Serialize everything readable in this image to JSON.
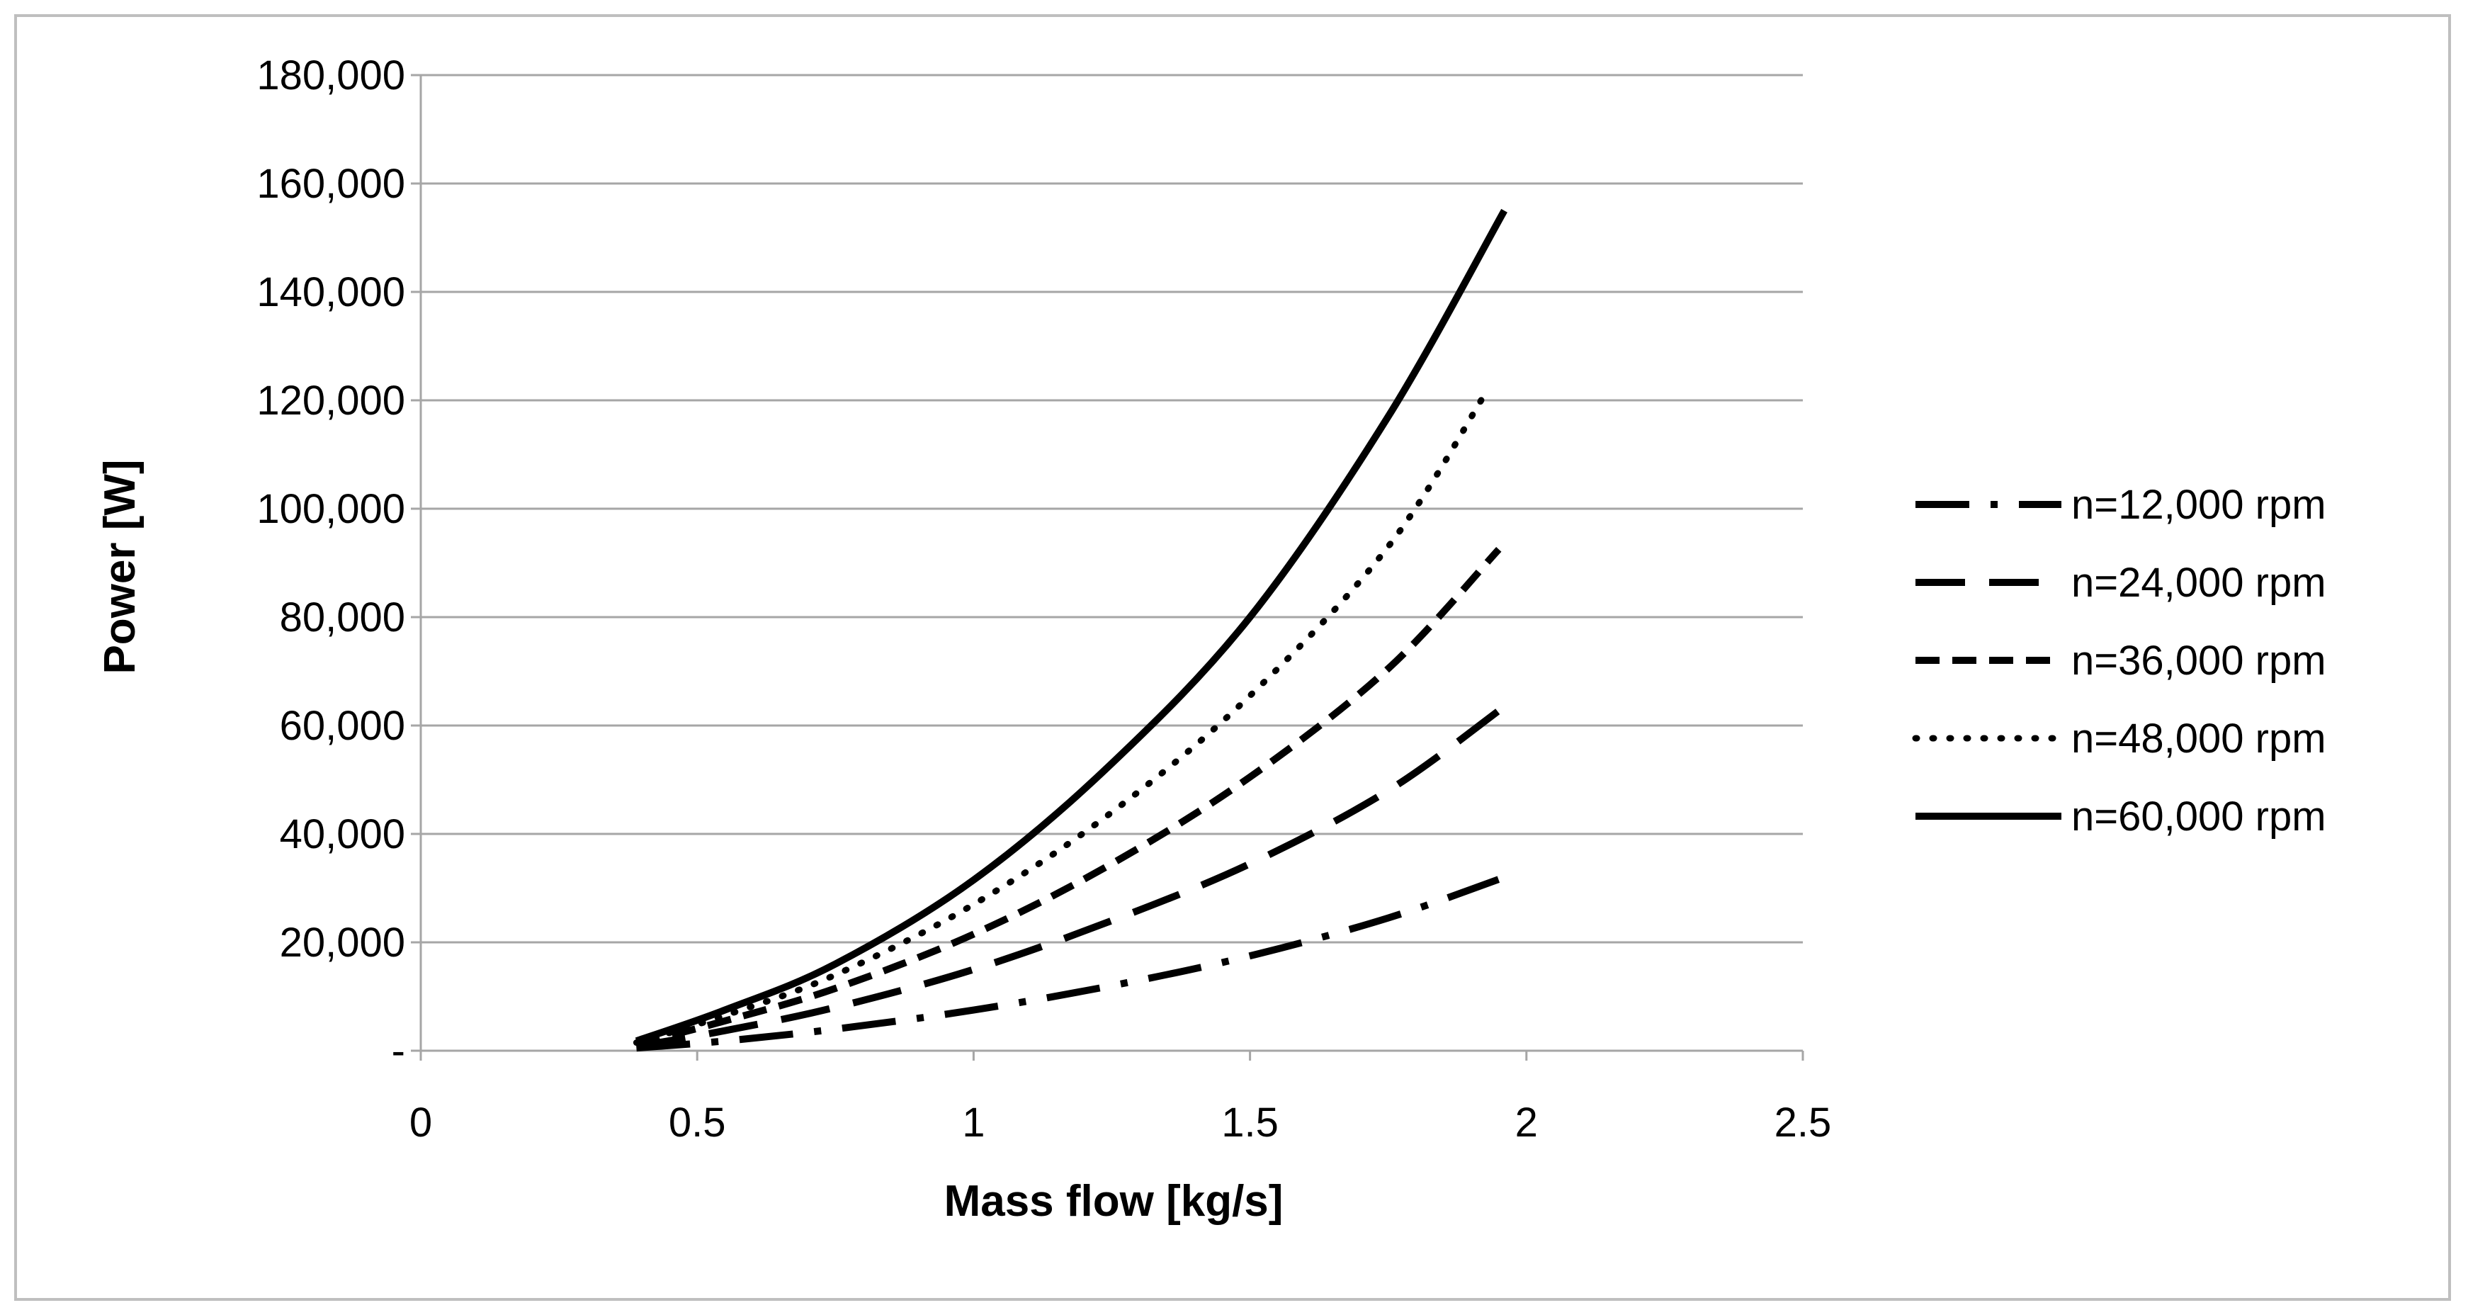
{
  "chart_data": {
    "type": "line",
    "title": "",
    "xlabel": "Mass flow [kg/s]",
    "ylabel": "Power [W]",
    "xlim": [
      0,
      2.5
    ],
    "ylim": [
      0,
      180000
    ],
    "x_ticks": [
      {
        "value": 0,
        "label": "0"
      },
      {
        "value": 0.5,
        "label": "0.5"
      },
      {
        "value": 1,
        "label": "1"
      },
      {
        "value": 1.5,
        "label": "1.5"
      },
      {
        "value": 2,
        "label": "2"
      },
      {
        "value": 2.5,
        "label": "2.5"
      }
    ],
    "y_ticks": [
      {
        "value": 0,
        "label": "-"
      },
      {
        "value": 20000,
        "label": "20,000"
      },
      {
        "value": 40000,
        "label": "40,000"
      },
      {
        "value": 60000,
        "label": "60,000"
      },
      {
        "value": 80000,
        "label": "80,000"
      },
      {
        "value": 100000,
        "label": "100,000"
      },
      {
        "value": 120000,
        "label": "120,000"
      },
      {
        "value": 140000,
        "label": "140,000"
      },
      {
        "value": 160000,
        "label": "160,000"
      },
      {
        "value": 180000,
        "label": "180,000"
      }
    ],
    "grid": "horizontal",
    "legend_position": "right",
    "series": [
      {
        "name": "n=12,000 rpm",
        "style": "dash-dot",
        "x": [
          0.39,
          0.55,
          0.75,
          1.0,
          1.25,
          1.5,
          1.75,
          1.96
        ],
        "y": [
          500,
          1800,
          4000,
          7500,
          12000,
          17500,
          24500,
          32000
        ]
      },
      {
        "name": "n=24,000 rpm",
        "style": "long-dash",
        "x": [
          0.39,
          0.55,
          0.75,
          1.0,
          1.25,
          1.5,
          1.75,
          1.96
        ],
        "y": [
          800,
          3700,
          8000,
          15000,
          24000,
          34500,
          48000,
          63500
        ]
      },
      {
        "name": "n=36,000 rpm",
        "style": "dash",
        "x": [
          0.39,
          0.55,
          0.75,
          1.0,
          1.25,
          1.5,
          1.75,
          1.95
        ],
        "y": [
          1200,
          5500,
          11500,
          21500,
          34500,
          50500,
          70500,
          92500
        ]
      },
      {
        "name": "n=48,000 rpm",
        "style": "dot",
        "x": [
          0.39,
          0.55,
          0.75,
          1.0,
          1.25,
          1.5,
          1.75,
          1.93
        ],
        "y": [
          1500,
          6500,
          14000,
          27000,
          44000,
          65500,
          93000,
          122000
        ]
      },
      {
        "name": "n=60,000 rpm",
        "style": "solid",
        "x": [
          0.39,
          0.55,
          0.75,
          1.0,
          1.25,
          1.5,
          1.75,
          1.96
        ],
        "y": [
          1800,
          7500,
          16000,
          31500,
          53000,
          80000,
          117000,
          155000
        ]
      }
    ]
  }
}
